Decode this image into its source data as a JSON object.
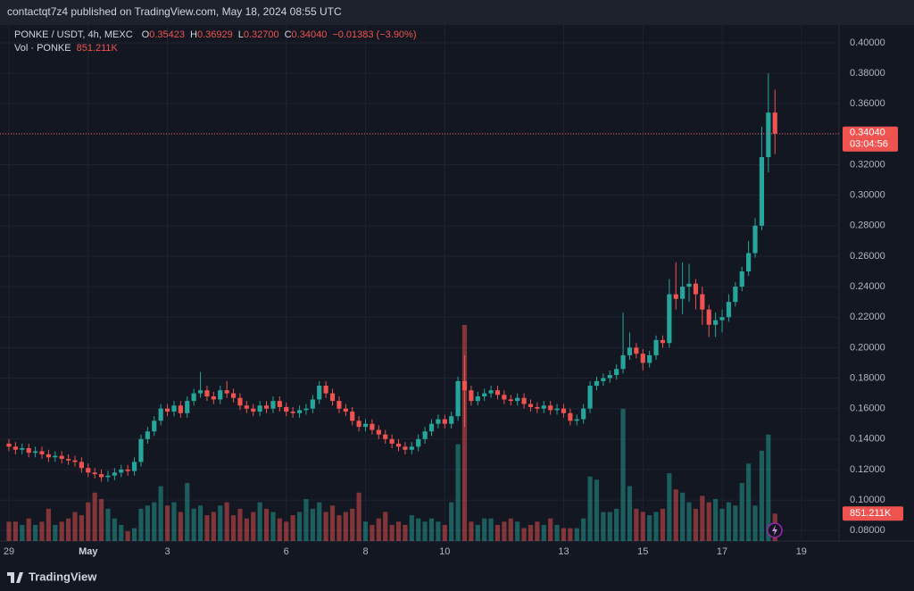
{
  "header": {
    "published": "contactqt7z4 published on TradingView.com, May 18, 2024 08:55 UTC"
  },
  "footer": {
    "brand": "TradingView"
  },
  "chart_data": {
    "type": "candlestick",
    "symbol": "PONKE / USDT, 4h, MEXC",
    "ohlc_legend": [
      {
        "label": "O",
        "value": "0.35423"
      },
      {
        "label": "H",
        "value": "0.36929"
      },
      {
        "label": "L",
        "value": "0.32700"
      },
      {
        "label": "C",
        "value": "0.34040"
      }
    ],
    "change": "−0.01383 (−3.90%)",
    "volume_title": "Vol · PONKE",
    "last_volume_label": "851.211K",
    "last_price_label": "0.34040",
    "countdown": "03:04:56",
    "up_color": "#26a69a",
    "down_color": "#ef5350",
    "xlim": [
      -1.35,
      125.7
    ],
    "xticks": [
      {
        "value": 0,
        "label": "29"
      },
      {
        "value": 12,
        "label": "May"
      },
      {
        "value": 24,
        "label": "3"
      },
      {
        "value": 42,
        "label": "6"
      },
      {
        "value": 54,
        "label": "8"
      },
      {
        "value": 66,
        "label": "10"
      },
      {
        "value": 84,
        "label": "13"
      },
      {
        "value": 96,
        "label": "15"
      },
      {
        "value": 108,
        "label": "17"
      },
      {
        "value": 120,
        "label": "19"
      }
    ],
    "ylim": [
      0.0731,
      0.4117
    ],
    "yticks": [
      {
        "value": 0.08,
        "label": "0.08000"
      },
      {
        "value": 0.1,
        "label": "0.10000"
      },
      {
        "value": 0.12,
        "label": "0.12000"
      },
      {
        "value": 0.14,
        "label": "0.14000"
      },
      {
        "value": 0.16,
        "label": "0.16000"
      },
      {
        "value": 0.18,
        "label": "0.18000"
      },
      {
        "value": 0.2,
        "label": "0.20000"
      },
      {
        "value": 0.22,
        "label": "0.22000"
      },
      {
        "value": 0.24,
        "label": "0.24000"
      },
      {
        "value": 0.26,
        "label": "0.26000"
      },
      {
        "value": 0.28,
        "label": "0.28000"
      },
      {
        "value": 0.3,
        "label": "0.30000"
      },
      {
        "value": 0.32,
        "label": "0.32000"
      },
      {
        "value": 0.34,
        "label": "0.34000"
      },
      {
        "value": 0.36,
        "label": "0.36000"
      },
      {
        "value": 0.38,
        "label": "0.38000"
      },
      {
        "value": 0.4,
        "label": "0.40000"
      }
    ],
    "vlim": [
      0,
      16000000
    ],
    "grid": true,
    "candles": [
      [
        0.137,
        0.14,
        0.132,
        0.135
      ],
      [
        0.135,
        0.138,
        0.13,
        0.133
      ],
      [
        0.133,
        0.137,
        0.13,
        0.134
      ],
      [
        0.134,
        0.137,
        0.128,
        0.131
      ],
      [
        0.131,
        0.135,
        0.128,
        0.132
      ],
      [
        0.132,
        0.135,
        0.127,
        0.13
      ],
      [
        0.13,
        0.133,
        0.125,
        0.128
      ],
      [
        0.128,
        0.132,
        0.125,
        0.129
      ],
      [
        0.129,
        0.132,
        0.124,
        0.127
      ],
      [
        0.127,
        0.13,
        0.123,
        0.126
      ],
      [
        0.126,
        0.129,
        0.122,
        0.125
      ],
      [
        0.125,
        0.128,
        0.118,
        0.121
      ],
      [
        0.121,
        0.124,
        0.115,
        0.118
      ],
      [
        0.118,
        0.121,
        0.114,
        0.117
      ],
      [
        0.117,
        0.12,
        0.112,
        0.115
      ],
      [
        0.115,
        0.119,
        0.112,
        0.116
      ],
      [
        0.116,
        0.121,
        0.113,
        0.118
      ],
      [
        0.118,
        0.123,
        0.115,
        0.12
      ],
      [
        0.12,
        0.123,
        0.116,
        0.119
      ],
      [
        0.119,
        0.128,
        0.116,
        0.125
      ],
      [
        0.125,
        0.143,
        0.122,
        0.14
      ],
      [
        0.14,
        0.148,
        0.137,
        0.145
      ],
      [
        0.145,
        0.155,
        0.142,
        0.152
      ],
      [
        0.152,
        0.163,
        0.149,
        0.16
      ],
      [
        0.16,
        0.163,
        0.155,
        0.158
      ],
      [
        0.158,
        0.165,
        0.155,
        0.162
      ],
      [
        0.162,
        0.165,
        0.154,
        0.157
      ],
      [
        0.157,
        0.168,
        0.154,
        0.165
      ],
      [
        0.165,
        0.173,
        0.162,
        0.17
      ],
      [
        0.17,
        0.184,
        0.167,
        0.172
      ],
      [
        0.172,
        0.175,
        0.165,
        0.168
      ],
      [
        0.168,
        0.171,
        0.163,
        0.166
      ],
      [
        0.166,
        0.175,
        0.163,
        0.172
      ],
      [
        0.172,
        0.178,
        0.167,
        0.17
      ],
      [
        0.17,
        0.173,
        0.164,
        0.167
      ],
      [
        0.167,
        0.17,
        0.159,
        0.162
      ],
      [
        0.162,
        0.165,
        0.157,
        0.16
      ],
      [
        0.16,
        0.163,
        0.155,
        0.158
      ],
      [
        0.158,
        0.165,
        0.155,
        0.162
      ],
      [
        0.162,
        0.165,
        0.157,
        0.16
      ],
      [
        0.16,
        0.168,
        0.157,
        0.165
      ],
      [
        0.165,
        0.168,
        0.158,
        0.161
      ],
      [
        0.161,
        0.164,
        0.155,
        0.158
      ],
      [
        0.158,
        0.161,
        0.154,
        0.157
      ],
      [
        0.157,
        0.162,
        0.154,
        0.159
      ],
      [
        0.159,
        0.163,
        0.156,
        0.16
      ],
      [
        0.16,
        0.169,
        0.157,
        0.166
      ],
      [
        0.166,
        0.178,
        0.163,
        0.175
      ],
      [
        0.175,
        0.178,
        0.167,
        0.17
      ],
      [
        0.17,
        0.173,
        0.162,
        0.165
      ],
      [
        0.165,
        0.168,
        0.157,
        0.16
      ],
      [
        0.16,
        0.163,
        0.155,
        0.158
      ],
      [
        0.158,
        0.161,
        0.149,
        0.152
      ],
      [
        0.152,
        0.155,
        0.145,
        0.148
      ],
      [
        0.148,
        0.153,
        0.145,
        0.15
      ],
      [
        0.15,
        0.153,
        0.143,
        0.146
      ],
      [
        0.146,
        0.149,
        0.14,
        0.143
      ],
      [
        0.143,
        0.146,
        0.137,
        0.14
      ],
      [
        0.14,
        0.143,
        0.134,
        0.137
      ],
      [
        0.137,
        0.14,
        0.132,
        0.135
      ],
      [
        0.135,
        0.138,
        0.13,
        0.133
      ],
      [
        0.133,
        0.138,
        0.13,
        0.135
      ],
      [
        0.135,
        0.143,
        0.132,
        0.14
      ],
      [
        0.14,
        0.148,
        0.137,
        0.145
      ],
      [
        0.145,
        0.153,
        0.142,
        0.15
      ],
      [
        0.15,
        0.156,
        0.147,
        0.153
      ],
      [
        0.153,
        0.156,
        0.147,
        0.15
      ],
      [
        0.15,
        0.158,
        0.147,
        0.155
      ],
      [
        0.155,
        0.181,
        0.152,
        0.178
      ],
      [
        0.178,
        0.195,
        0.148,
        0.172
      ],
      [
        0.172,
        0.175,
        0.162,
        0.165
      ],
      [
        0.165,
        0.171,
        0.162,
        0.168
      ],
      [
        0.168,
        0.173,
        0.165,
        0.17
      ],
      [
        0.17,
        0.175,
        0.167,
        0.172
      ],
      [
        0.172,
        0.175,
        0.166,
        0.169
      ],
      [
        0.169,
        0.172,
        0.163,
        0.166
      ],
      [
        0.166,
        0.169,
        0.162,
        0.165
      ],
      [
        0.165,
        0.17,
        0.162,
        0.167
      ],
      [
        0.167,
        0.17,
        0.16,
        0.163
      ],
      [
        0.163,
        0.166,
        0.158,
        0.161
      ],
      [
        0.161,
        0.164,
        0.157,
        0.16
      ],
      [
        0.16,
        0.165,
        0.157,
        0.162
      ],
      [
        0.162,
        0.165,
        0.156,
        0.159
      ],
      [
        0.159,
        0.163,
        0.156,
        0.16
      ],
      [
        0.16,
        0.163,
        0.154,
        0.157
      ],
      [
        0.157,
        0.16,
        0.149,
        0.152
      ],
      [
        0.152,
        0.156,
        0.149,
        0.153
      ],
      [
        0.153,
        0.163,
        0.15,
        0.16
      ],
      [
        0.16,
        0.178,
        0.157,
        0.175
      ],
      [
        0.175,
        0.181,
        0.172,
        0.178
      ],
      [
        0.178,
        0.183,
        0.175,
        0.18
      ],
      [
        0.18,
        0.185,
        0.177,
        0.182
      ],
      [
        0.182,
        0.189,
        0.179,
        0.186
      ],
      [
        0.186,
        0.223,
        0.183,
        0.195
      ],
      [
        0.195,
        0.21,
        0.192,
        0.2
      ],
      [
        0.2,
        0.203,
        0.193,
        0.196
      ],
      [
        0.196,
        0.199,
        0.185,
        0.19
      ],
      [
        0.19,
        0.198,
        0.187,
        0.195
      ],
      [
        0.195,
        0.208,
        0.192,
        0.205
      ],
      [
        0.205,
        0.208,
        0.2,
        0.203
      ],
      [
        0.203,
        0.245,
        0.2,
        0.235
      ],
      [
        0.235,
        0.256,
        0.225,
        0.232
      ],
      [
        0.232,
        0.256,
        0.222,
        0.24
      ],
      [
        0.24,
        0.255,
        0.23,
        0.242
      ],
      [
        0.242,
        0.245,
        0.225,
        0.235
      ],
      [
        0.235,
        0.24,
        0.215,
        0.225
      ],
      [
        0.225,
        0.228,
        0.207,
        0.215
      ],
      [
        0.215,
        0.223,
        0.207,
        0.218
      ],
      [
        0.218,
        0.225,
        0.21,
        0.22
      ],
      [
        0.22,
        0.235,
        0.217,
        0.23
      ],
      [
        0.23,
        0.243,
        0.227,
        0.24
      ],
      [
        0.24,
        0.253,
        0.237,
        0.25
      ],
      [
        0.25,
        0.27,
        0.247,
        0.262
      ],
      [
        0.262,
        0.285,
        0.259,
        0.28
      ],
      [
        0.28,
        0.345,
        0.277,
        0.325
      ],
      [
        0.325,
        0.38,
        0.315,
        0.35423
      ],
      [
        0.35423,
        0.36929,
        0.327,
        0.3404
      ]
    ],
    "volumes": [
      600000,
      600000,
      500000,
      700000,
      500000,
      600000,
      1000000,
      500000,
      600000,
      700000,
      900000,
      800000,
      1200000,
      1500000,
      1300000,
      1000000,
      700000,
      500000,
      300000,
      400000,
      1000000,
      1100000,
      1200000,
      1700000,
      1100000,
      1200000,
      900000,
      1800000,
      1000000,
      1100000,
      800000,
      900000,
      1100000,
      1200000,
      800000,
      1000000,
      700000,
      900000,
      1200000,
      1000000,
      900000,
      700000,
      600000,
      800000,
      900000,
      1300000,
      1000000,
      1200000,
      900000,
      1100000,
      800000,
      900000,
      1000000,
      1500000,
      600000,
      500000,
      700000,
      900000,
      500000,
      600000,
      500000,
      800000,
      700000,
      600000,
      700000,
      600000,
      500000,
      1200000,
      3000000,
      6700000,
      600000,
      500000,
      700000,
      700000,
      500000,
      600000,
      700000,
      600000,
      400000,
      500000,
      600000,
      500000,
      700000,
      500000,
      400000,
      400000,
      400000,
      700000,
      2000000,
      1900000,
      900000,
      900000,
      1000000,
      4100000,
      1700000,
      1000000,
      900000,
      800000,
      900000,
      1000000,
      2100000,
      1600000,
      1500000,
      1200000,
      1000000,
      1400000,
      1200000,
      1300000,
      1000000,
      1200000,
      1100000,
      1800000,
      2400000,
      1100000,
      2800000,
      3300000,
      851211
    ]
  }
}
